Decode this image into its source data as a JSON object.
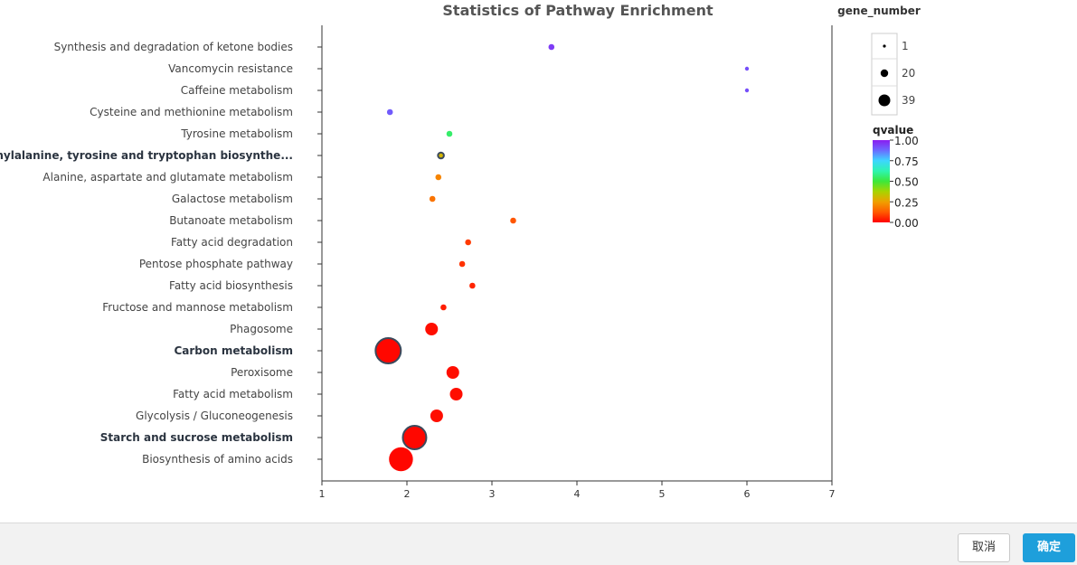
{
  "chart_data": {
    "type": "scatter",
    "title": "Statistics of Pathway Enrichment",
    "xlim": [
      1,
      7
    ],
    "x_ticks": [
      "1",
      "2",
      "3",
      "4",
      "5",
      "6",
      "7"
    ],
    "size_legend": {
      "title": "gene_number",
      "entries": [
        {
          "label": "1",
          "value": 1
        },
        {
          "label": "20",
          "value": 20
        },
        {
          "label": "39",
          "value": 39
        }
      ]
    },
    "color_legend": {
      "title": "qvalue",
      "ticks": [
        "1.00",
        "0.75",
        "0.50",
        "0.25",
        "0.00"
      ],
      "stops": [
        "#8a1cf0",
        "#6b6bff",
        "#3dd6ff",
        "#2ef5b0",
        "#3be83b",
        "#a8d400",
        "#f0a000",
        "#ff5a00",
        "#ff0000"
      ]
    },
    "points": [
      {
        "pathway": "Synthesis and degradation of ketone bodies",
        "x": 3.7,
        "gene_number": 2,
        "qvalue": 0.95,
        "bold": false,
        "outlined": false
      },
      {
        "pathway": "Vancomycin resistance",
        "x": 6.0,
        "gene_number": 1,
        "qvalue": 0.92,
        "bold": false,
        "outlined": false
      },
      {
        "pathway": "Caffeine metabolism",
        "x": 6.0,
        "gene_number": 1,
        "qvalue": 0.92,
        "bold": false,
        "outlined": false
      },
      {
        "pathway": "Cysteine and methionine metabolism",
        "x": 1.8,
        "gene_number": 2,
        "qvalue": 0.9,
        "bold": false,
        "outlined": false
      },
      {
        "pathway": "Tyrosine metabolism",
        "x": 2.5,
        "gene_number": 2,
        "qvalue": 0.55,
        "bold": false,
        "outlined": false
      },
      {
        "pathway": "Phenylalanine, tyrosine and tryptophan biosynthe...",
        "x": 2.4,
        "gene_number": 2,
        "qvalue": 0.3,
        "bold": true,
        "outlined": true
      },
      {
        "pathway": "Alanine, aspartate and glutamate metabolism",
        "x": 2.37,
        "gene_number": 2,
        "qvalue": 0.2,
        "bold": false,
        "outlined": false
      },
      {
        "pathway": "Galactose metabolism",
        "x": 2.3,
        "gene_number": 2,
        "qvalue": 0.17,
        "bold": false,
        "outlined": false
      },
      {
        "pathway": "Butanoate metabolism",
        "x": 3.25,
        "gene_number": 2,
        "qvalue": 0.12,
        "bold": false,
        "outlined": false
      },
      {
        "pathway": "Fatty acid degradation",
        "x": 2.72,
        "gene_number": 2,
        "qvalue": 0.08,
        "bold": false,
        "outlined": false
      },
      {
        "pathway": "Pentose phosphate pathway",
        "x": 2.65,
        "gene_number": 2,
        "qvalue": 0.07,
        "bold": false,
        "outlined": false
      },
      {
        "pathway": "Fatty acid biosynthesis",
        "x": 2.77,
        "gene_number": 2,
        "qvalue": 0.05,
        "bold": false,
        "outlined": false
      },
      {
        "pathway": "Fructose and mannose metabolism",
        "x": 2.43,
        "gene_number": 2,
        "qvalue": 0.04,
        "bold": false,
        "outlined": false
      },
      {
        "pathway": "Phagosome",
        "x": 2.29,
        "gene_number": 8,
        "qvalue": 0.02,
        "bold": false,
        "outlined": false
      },
      {
        "pathway": "Carbon metabolism",
        "x": 1.78,
        "gene_number": 30,
        "qvalue": 0.01,
        "bold": true,
        "outlined": true
      },
      {
        "pathway": "Peroxisome",
        "x": 2.54,
        "gene_number": 8,
        "qvalue": 0.02,
        "bold": false,
        "outlined": false
      },
      {
        "pathway": "Fatty acid metabolism",
        "x": 2.58,
        "gene_number": 8,
        "qvalue": 0.02,
        "bold": false,
        "outlined": false
      },
      {
        "pathway": "Glycolysis / Gluconeogenesis",
        "x": 2.35,
        "gene_number": 8,
        "qvalue": 0.02,
        "bold": false,
        "outlined": false
      },
      {
        "pathway": "Starch and sucrose metabolism",
        "x": 2.09,
        "gene_number": 26,
        "qvalue": 0.01,
        "bold": true,
        "outlined": true
      },
      {
        "pathway": "Biosynthesis of amino acids",
        "x": 1.93,
        "gene_number": 27,
        "qvalue": 0.01,
        "bold": false,
        "outlined": false
      }
    ]
  },
  "footer": {
    "cancel_label": "取消",
    "ok_label": "确定"
  }
}
